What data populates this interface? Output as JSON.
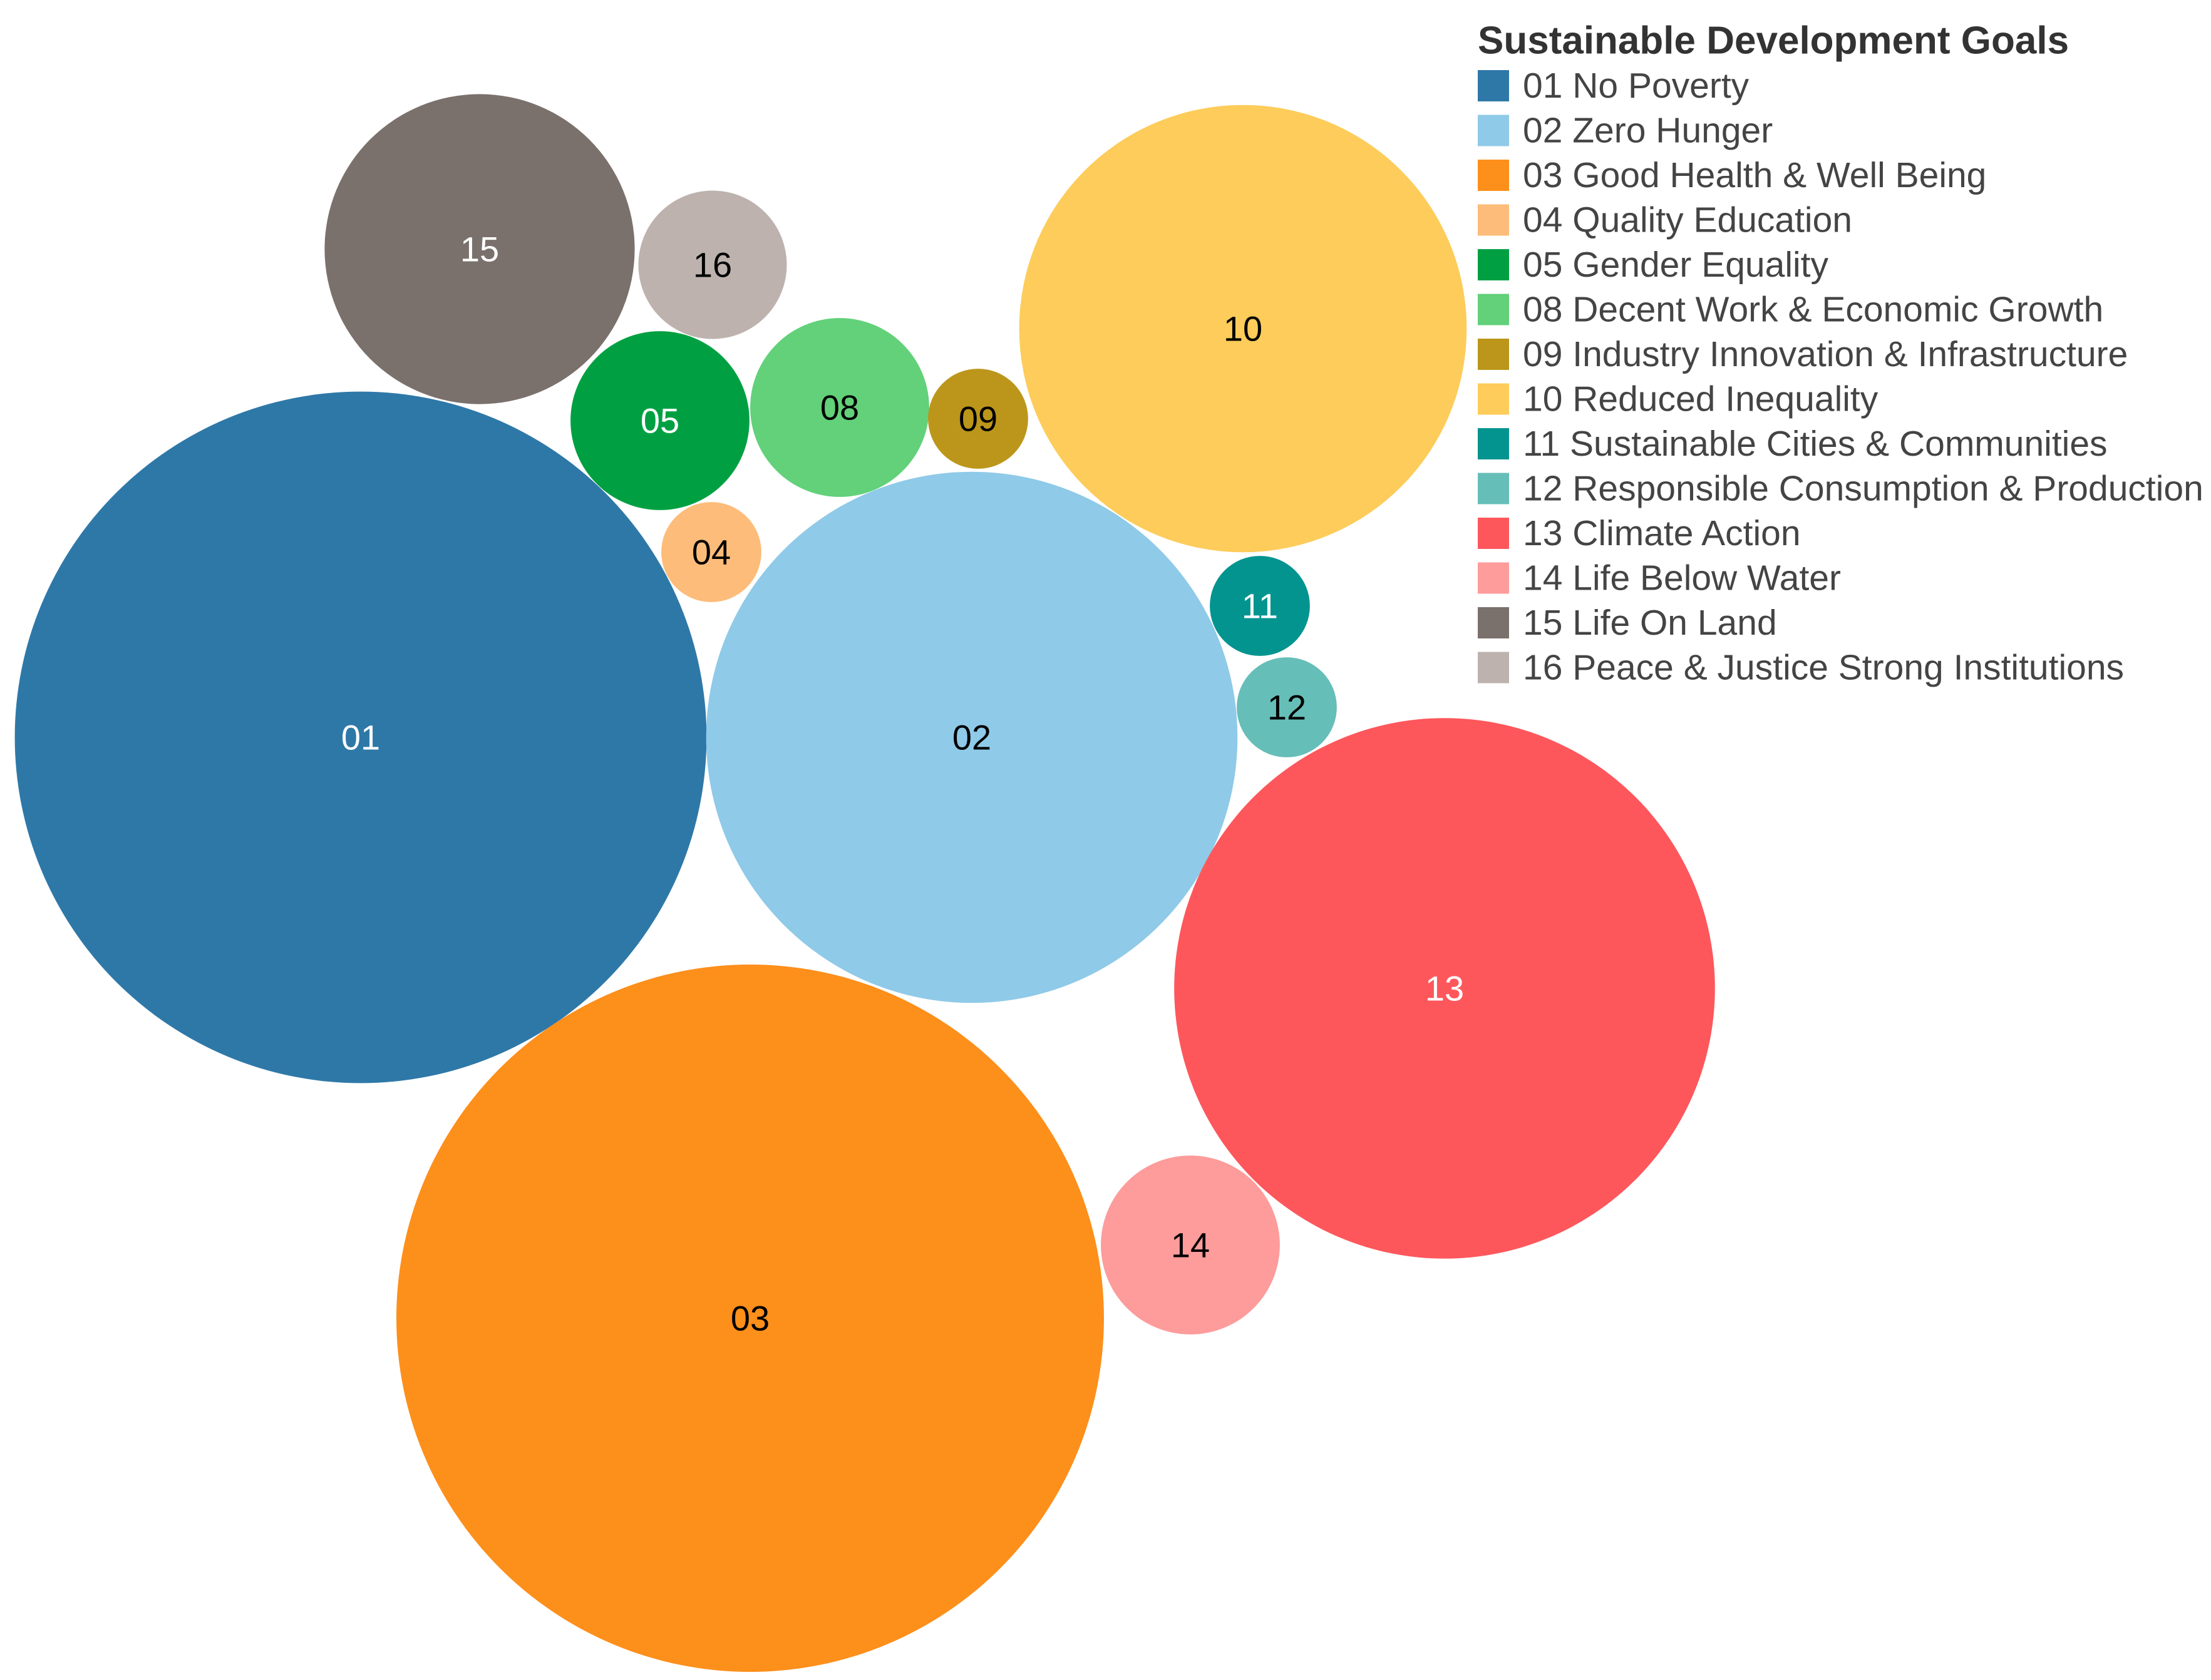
{
  "chart_data": {
    "type": "bubble",
    "legend": {
      "title": "Sustainable Development Goals",
      "placement": "top-right"
    },
    "series": [
      {
        "id": "01",
        "name": "01 No Poverty",
        "color": "#2e78a8",
        "label_color": "#ffffff",
        "value": 239
      },
      {
        "id": "02",
        "name": "02 Zero Hunger",
        "color": "#8fcae8",
        "label_color": "#000000",
        "value": 141
      },
      {
        "id": "03",
        "name": "03 Good Health & Well Being",
        "color": "#fd8f1b",
        "label_color": "#000000",
        "value": 250
      },
      {
        "id": "04",
        "name": "04 Quality Education",
        "color": "#fdbc79",
        "label_color": "#000000",
        "value": 5
      },
      {
        "id": "05",
        "name": "05 Gender Equality",
        "color": "#00a042",
        "label_color": "#ffffff",
        "value": 16
      },
      {
        "id": "08",
        "name": "08 Decent Work & Economic Growth",
        "color": "#62d17a",
        "label_color": "#000000",
        "value": 16
      },
      {
        "id": "09",
        "name": "09 Industry Innovation & Infrastructure",
        "color": "#bc961a",
        "label_color": "#000000",
        "value": 5
      },
      {
        "id": "10",
        "name": "10 Reduced Inequality",
        "color": "#fdcc5a",
        "label_color": "#000000",
        "value": 100
      },
      {
        "id": "11",
        "name": "11 Sustainable Cities & Communities",
        "color": "#039490",
        "label_color": "#ffffff",
        "value": 5
      },
      {
        "id": "12",
        "name": "12 Responsible Consumption & Production",
        "color": "#66beb8",
        "label_color": "#000000",
        "value": 5
      },
      {
        "id": "13",
        "name": "13 Climate Action",
        "color": "#fd575c",
        "label_color": "#ffffff",
        "value": 146
      },
      {
        "id": "14",
        "name": "14 Life Below Water",
        "color": "#fd9c9b",
        "label_color": "#000000",
        "value": 16
      },
      {
        "id": "15",
        "name": "15 Life On Land",
        "color": "#7a706c",
        "label_color": "#ffffff",
        "value": 48
      },
      {
        "id": "16",
        "name": "16 Peace & Justice Strong Institutions",
        "color": "#bdb2ae",
        "label_color": "#000000",
        "value": 11
      }
    ]
  }
}
